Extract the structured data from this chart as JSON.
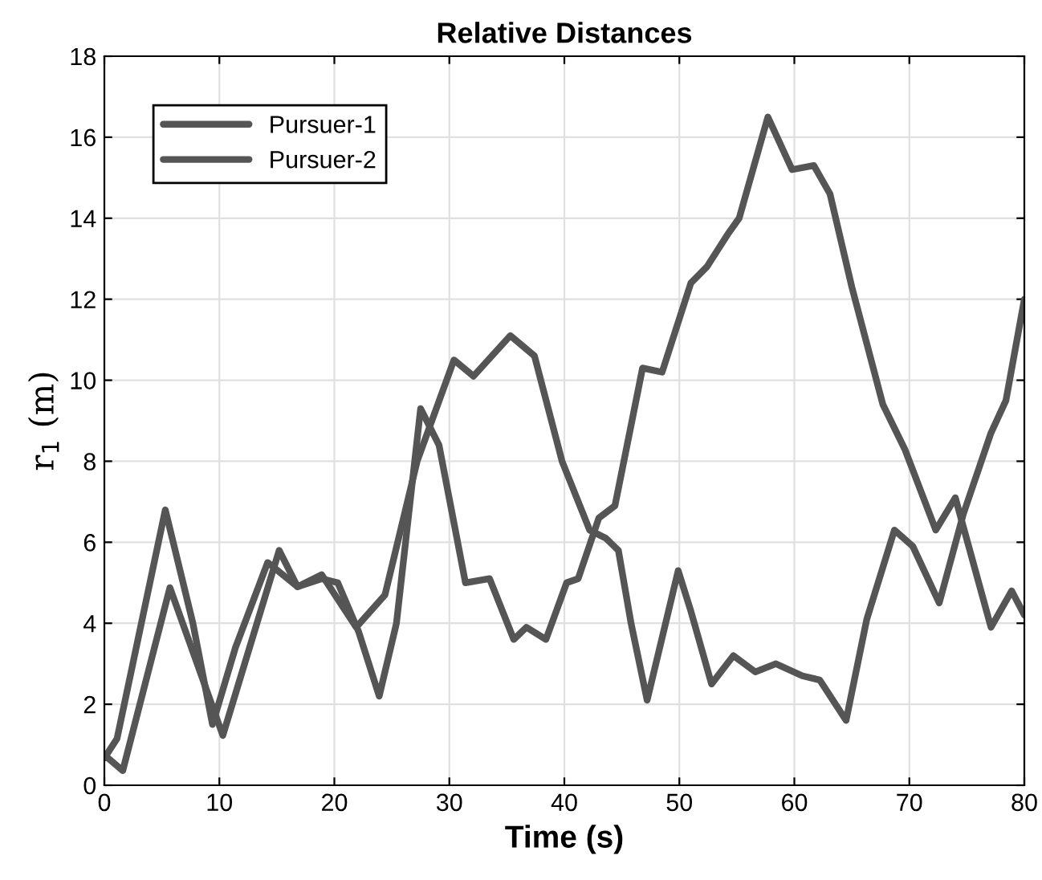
{
  "chart_data": {
    "type": "line",
    "title": "Relative Distances",
    "xlabel": "Time (s)",
    "ylabel": "r$_{1}$ (m)",
    "xlim": [
      0,
      80
    ],
    "ylim": [
      0,
      18
    ],
    "xticks": [
      0,
      10,
      20,
      30,
      40,
      50,
      60,
      70,
      80
    ],
    "yticks": [
      0,
      2,
      4,
      6,
      8,
      10,
      12,
      14,
      16,
      18
    ],
    "grid": true,
    "legend": "top left",
    "marker": "none",
    "line_style": "solid",
    "series": [
      {
        "name": "Pursuer-1",
        "color": "#555555",
        "x": [
          0,
          1.6,
          5.7,
          10.3,
          15.2,
          16.8,
          18.9,
          21.9,
          24.4,
          27.2,
          30.4,
          32.1,
          35.3,
          37.4,
          39.8,
          42.2,
          43.6,
          44.7,
          45.8,
          47.2,
          49.9,
          51,
          52.8,
          54.7,
          56.6,
          58.4,
          60.7,
          62.2,
          64.5,
          66.3,
          68.7,
          70.3,
          72.6,
          74.7,
          77.1,
          78.4,
          80
        ],
        "values": [
          0.75,
          0.36,
          4.88,
          1.23,
          5.8,
          4.9,
          5.2,
          3.9,
          4.7,
          8.0,
          10.5,
          10.1,
          11.1,
          10.6,
          8.0,
          6.3,
          6.1,
          5.8,
          4.0,
          2.1,
          5.3,
          4.3,
          2.5,
          3.2,
          2.8,
          3.0,
          2.7,
          2.6,
          1.6,
          4.1,
          6.3,
          5.9,
          4.5,
          6.7,
          8.7,
          9.5,
          12.0
        ]
      },
      {
        "name": "Pursuer-2",
        "color": "#555555",
        "x": [
          0,
          1.1,
          5.3,
          7.7,
          9.4,
          11.4,
          14.2,
          16.8,
          18.9,
          20.3,
          22.1,
          23.9,
          25.4,
          27.5,
          29.1,
          31.4,
          33.5,
          35.6,
          36.7,
          38.4,
          40.2,
          41.2,
          43.0,
          44.4,
          46.8,
          48.5,
          51.0,
          52.4,
          54.2,
          55.2,
          57.7,
          59.8,
          61.7,
          63.1,
          65,
          67.7,
          69.6,
          72.3,
          74,
          77.1,
          78.9,
          80
        ],
        "values": [
          0.67,
          1.15,
          6.8,
          4.0,
          1.5,
          3.4,
          5.5,
          4.9,
          5.1,
          5.0,
          3.8,
          2.2,
          4.0,
          9.3,
          8.4,
          5.0,
          5.1,
          3.6,
          3.9,
          3.6,
          5.0,
          5.1,
          6.6,
          6.9,
          10.3,
          10.2,
          12.4,
          12.8,
          13.6,
          14.0,
          16.5,
          15.2,
          15.3,
          14.6,
          12.3,
          9.4,
          8.3,
          6.3,
          7.1,
          3.9,
          4.8,
          4.2
        ]
      }
    ]
  }
}
